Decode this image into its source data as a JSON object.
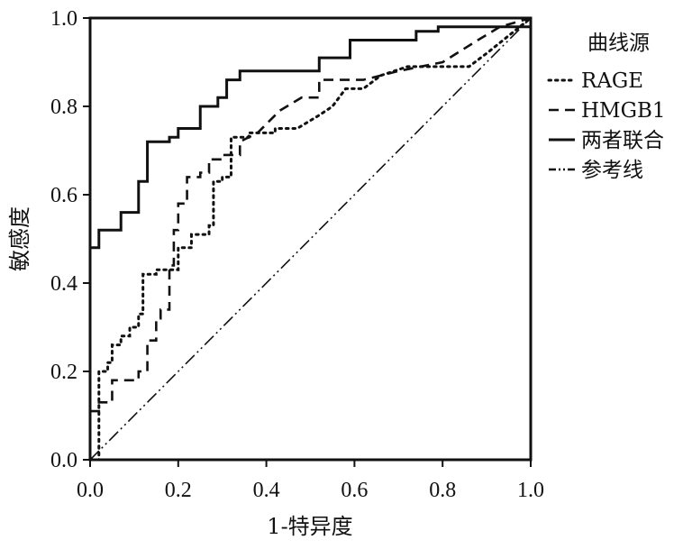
{
  "chart_data": {
    "type": "line",
    "title": "",
    "xlabel": "1-特异度",
    "ylabel": "敏感度",
    "xlim": [
      0,
      1
    ],
    "ylim": [
      0,
      1
    ],
    "x_ticks": [
      "0.0",
      "0.2",
      "0.4",
      "0.6",
      "0.8",
      "1.0"
    ],
    "y_ticks": [
      "0.0",
      "0.2",
      "0.4",
      "0.6",
      "0.8",
      "1.0"
    ],
    "grid": false,
    "legend": {
      "title": "曲线源",
      "position": "right"
    },
    "series": [
      {
        "name": "RAGE",
        "style": "dotted",
        "color": "#111111",
        "points": [
          [
            0,
            0
          ],
          [
            0.02,
            0
          ],
          [
            0.02,
            0.2
          ],
          [
            0.04,
            0.2
          ],
          [
            0.04,
            0.22
          ],
          [
            0.05,
            0.22
          ],
          [
            0.05,
            0.26
          ],
          [
            0.07,
            0.26
          ],
          [
            0.07,
            0.28
          ],
          [
            0.09,
            0.28
          ],
          [
            0.09,
            0.3
          ],
          [
            0.11,
            0.3
          ],
          [
            0.11,
            0.33
          ],
          [
            0.12,
            0.33
          ],
          [
            0.12,
            0.42
          ],
          [
            0.15,
            0.42
          ],
          [
            0.15,
            0.43
          ],
          [
            0.2,
            0.43
          ],
          [
            0.2,
            0.48
          ],
          [
            0.23,
            0.48
          ],
          [
            0.23,
            0.51
          ],
          [
            0.27,
            0.51
          ],
          [
            0.27,
            0.53
          ],
          [
            0.28,
            0.53
          ],
          [
            0.28,
            0.63
          ],
          [
            0.3,
            0.63
          ],
          [
            0.3,
            0.64
          ],
          [
            0.32,
            0.64
          ],
          [
            0.32,
            0.73
          ],
          [
            0.36,
            0.73
          ],
          [
            0.36,
            0.74
          ],
          [
            0.42,
            0.74
          ],
          [
            0.42,
            0.75
          ],
          [
            0.47,
            0.75
          ],
          [
            0.52,
            0.78
          ],
          [
            0.55,
            0.8
          ],
          [
            0.58,
            0.84
          ],
          [
            0.62,
            0.84
          ],
          [
            0.66,
            0.87
          ],
          [
            0.72,
            0.89
          ],
          [
            0.86,
            0.89
          ],
          [
            0.9,
            0.92
          ],
          [
            0.95,
            0.96
          ],
          [
            1,
            1
          ]
        ]
      },
      {
        "name": "HMGB1",
        "style": "dashed",
        "color": "#111111",
        "points": [
          [
            0,
            0
          ],
          [
            0,
            0.11
          ],
          [
            0.02,
            0.11
          ],
          [
            0.02,
            0.13
          ],
          [
            0.05,
            0.13
          ],
          [
            0.05,
            0.18
          ],
          [
            0.11,
            0.18
          ],
          [
            0.11,
            0.2
          ],
          [
            0.13,
            0.2
          ],
          [
            0.13,
            0.27
          ],
          [
            0.15,
            0.27
          ],
          [
            0.15,
            0.32
          ],
          [
            0.16,
            0.32
          ],
          [
            0.16,
            0.34
          ],
          [
            0.18,
            0.34
          ],
          [
            0.18,
            0.44
          ],
          [
            0.19,
            0.44
          ],
          [
            0.19,
            0.52
          ],
          [
            0.2,
            0.52
          ],
          [
            0.2,
            0.58
          ],
          [
            0.22,
            0.58
          ],
          [
            0.22,
            0.64
          ],
          [
            0.25,
            0.64
          ],
          [
            0.25,
            0.65
          ],
          [
            0.27,
            0.65
          ],
          [
            0.27,
            0.68
          ],
          [
            0.3,
            0.68
          ],
          [
            0.3,
            0.69
          ],
          [
            0.34,
            0.69
          ],
          [
            0.34,
            0.72
          ],
          [
            0.38,
            0.74
          ],
          [
            0.43,
            0.79
          ],
          [
            0.48,
            0.82
          ],
          [
            0.52,
            0.82
          ],
          [
            0.52,
            0.86
          ],
          [
            0.62,
            0.86
          ],
          [
            0.66,
            0.87
          ],
          [
            0.7,
            0.88
          ],
          [
            0.8,
            0.9
          ],
          [
            0.88,
            0.95
          ],
          [
            0.93,
            0.98
          ],
          [
            1,
            1
          ]
        ]
      },
      {
        "name": "两者联合",
        "style": "solid",
        "color": "#111111",
        "points": [
          [
            0,
            0
          ],
          [
            0,
            0.48
          ],
          [
            0.02,
            0.48
          ],
          [
            0.02,
            0.52
          ],
          [
            0.07,
            0.52
          ],
          [
            0.07,
            0.56
          ],
          [
            0.11,
            0.56
          ],
          [
            0.11,
            0.63
          ],
          [
            0.13,
            0.63
          ],
          [
            0.13,
            0.72
          ],
          [
            0.18,
            0.72
          ],
          [
            0.18,
            0.73
          ],
          [
            0.2,
            0.73
          ],
          [
            0.2,
            0.75
          ],
          [
            0.25,
            0.75
          ],
          [
            0.25,
            0.8
          ],
          [
            0.29,
            0.8
          ],
          [
            0.29,
            0.82
          ],
          [
            0.31,
            0.82
          ],
          [
            0.31,
            0.86
          ],
          [
            0.34,
            0.86
          ],
          [
            0.34,
            0.88
          ],
          [
            0.52,
            0.88
          ],
          [
            0.52,
            0.91
          ],
          [
            0.59,
            0.91
          ],
          [
            0.59,
            0.95
          ],
          [
            0.74,
            0.95
          ],
          [
            0.74,
            0.97
          ],
          [
            0.79,
            0.97
          ],
          [
            0.79,
            0.98
          ],
          [
            1,
            0.98
          ],
          [
            1,
            1
          ]
        ]
      },
      {
        "name": "参考线",
        "style": "dash-dot-dot",
        "color": "#111111",
        "points": [
          [
            0,
            0
          ],
          [
            1,
            1
          ]
        ]
      }
    ]
  },
  "colors": {
    "axis": "#111111",
    "background": "#ffffff"
  }
}
